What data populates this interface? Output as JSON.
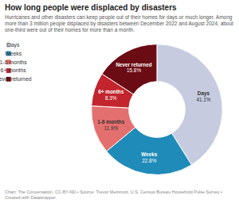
{
  "chart_data": {
    "type": "donut",
    "title": "How long people were displaced by disasters",
    "subtitle": "Hurricanes and other disasters can keep people out of their homes for days or much longer. Among more than 3 million people displaced by disasters between December 2022 and August 2024, about one-third were out of their homes for more than a month.",
    "caption": "Chart: The Conversation, CC-BY-ND • Source: Trevor Memmott, U.S. Census Bureau Household Pulse Survey • Created with Datawrapper",
    "categories": [
      "Days",
      "Weeks",
      "1-6 months",
      "6+ months",
      "Never returned"
    ],
    "values": [
      41.1,
      22.8,
      11.9,
      8.3,
      15.8
    ],
    "value_labels": [
      "41.1%",
      "22.8%",
      "11.9%",
      "8.3%",
      "15.8%"
    ],
    "colors": [
      "#c6cbe0",
      "#1f8bb8",
      "#e46f6f",
      "#c2252d",
      "#6b0b14"
    ],
    "data_labels": true,
    "legend": "top-left"
  }
}
